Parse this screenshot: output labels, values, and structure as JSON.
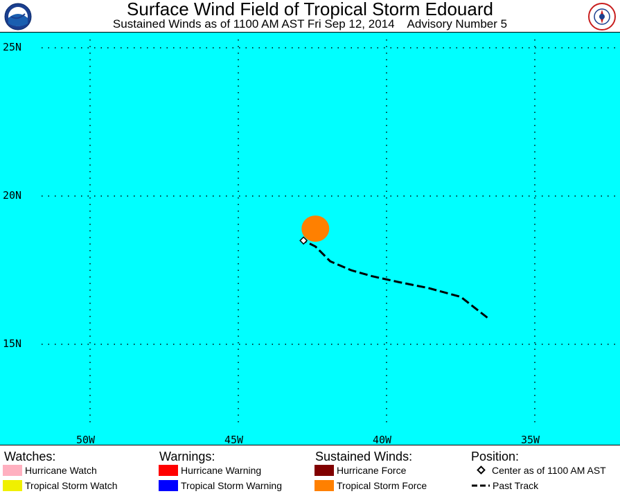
{
  "header": {
    "title": "Surface Wind Field of Tropical Storm Edouard",
    "subtitle": "Sustained Winds as of 1100 AM AST Fri Sep 12, 2014    Advisory Number 5",
    "logo_left": "NOAA",
    "logo_right": "NATIONAL WEATHER SERVICE"
  },
  "map": {
    "lat_labels": [
      "25N",
      "20N",
      "15N"
    ],
    "lon_labels": [
      "50W",
      "45W",
      "40W",
      "35W"
    ],
    "lat_values": [
      25,
      20,
      15
    ],
    "lon_values": [
      -50,
      -45,
      -40,
      -35
    ],
    "ocean_color": "#00ffff",
    "center": {
      "lat": 18.5,
      "lon": -42.8
    },
    "tropical_storm_force_area": {
      "center_lat": 18.9,
      "center_lon": -42.4,
      "color": "#ff8000"
    },
    "past_track": [
      {
        "lat": 15.9,
        "lon": -36.6
      },
      {
        "lat": 16.6,
        "lon": -37.5
      },
      {
        "lat": 16.9,
        "lon": -38.6
      },
      {
        "lat": 17.1,
        "lon": -39.6
      },
      {
        "lat": 17.3,
        "lon": -40.5
      },
      {
        "lat": 17.5,
        "lon": -41.2
      },
      {
        "lat": 17.8,
        "lon": -41.9
      },
      {
        "lat": 18.3,
        "lon": -42.4
      },
      {
        "lat": 18.5,
        "lon": -42.8
      }
    ]
  },
  "legend": {
    "watches": {
      "heading": "Watches:",
      "items": [
        {
          "label": "Hurricane Watch",
          "color": "#ffb0c0"
        },
        {
          "label": "Tropical Storm Watch",
          "color": "#f0f000"
        }
      ]
    },
    "warnings": {
      "heading": "Warnings:",
      "items": [
        {
          "label": "Hurricane Warning",
          "color": "#ff0000"
        },
        {
          "label": "Tropical Storm Warning",
          "color": "#0000ff"
        }
      ]
    },
    "winds": {
      "heading": "Sustained Winds:",
      "items": [
        {
          "label": "Hurricane Force",
          "color": "#800000"
        },
        {
          "label": "Tropical Storm Force",
          "color": "#ff8000"
        }
      ]
    },
    "position": {
      "heading": "Position:",
      "center_label": "Center as of 1100 AM AST",
      "track_label": "Past Track"
    }
  }
}
